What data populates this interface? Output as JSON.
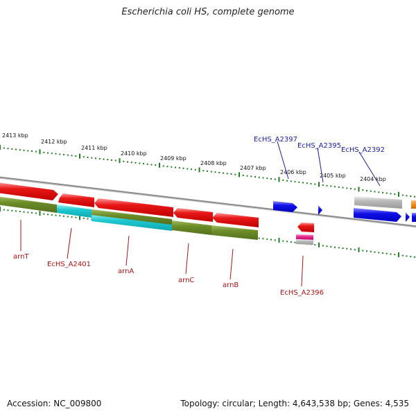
{
  "title": "Escherichia coli HS, complete genome",
  "footer": {
    "accession": "Accession: NC_009800",
    "summary": "Topology: circular; Length: 4,643,538 bp; Genes: 4,535"
  },
  "colors": {
    "backbone": "#8a8a8a",
    "tick": "#1e7d1e",
    "label_top": "#1a1aa0",
    "label_bottom": "#b01010",
    "gene_red": "#e81818",
    "gene_olive": "#6b8c28",
    "gene_cyan": "#1ec8d0",
    "gene_blue": "#1010e8",
    "gene_gray": "#b4b4b4",
    "gene_magenta": "#e0208a",
    "gene_orange": "#f08a1a"
  },
  "scale": {
    "ticks": [
      {
        "label": "2413 kbp"
      },
      {
        "label": "2412 kbp"
      },
      {
        "label": "2411 kbp"
      },
      {
        "label": "2410 kbp"
      },
      {
        "label": "2409 kbp"
      },
      {
        "label": "2408 kbp"
      },
      {
        "label": "2407 kbp"
      },
      {
        "label": "2406 kbp"
      },
      {
        "label": "2405 kbp"
      },
      {
        "label": "2404 kbp"
      }
    ]
  },
  "gene_labels": {
    "top": [
      "EcHS_A2397",
      "EcHS_A2395",
      "EcHS_A2392"
    ],
    "bottom": [
      "arnT",
      "EcHS_A2401",
      "arnA",
      "arnC",
      "arnB",
      "EcHS_A2396"
    ]
  }
}
